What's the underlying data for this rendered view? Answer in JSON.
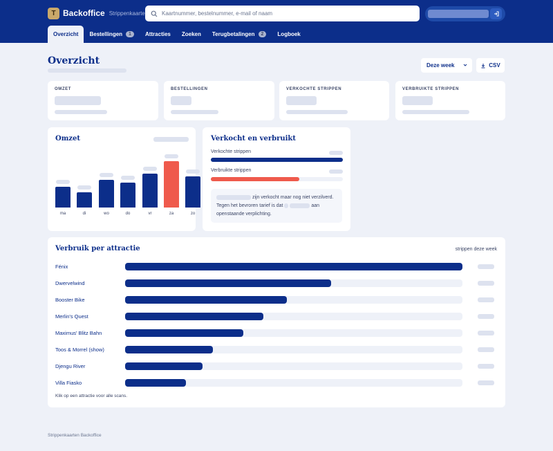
{
  "app": {
    "logo_letter": "T",
    "name": "Backoffice",
    "subtitle": "Strippenkaarten"
  },
  "search": {
    "placeholder": "Kaartnummer, bestelnummer, e-mail of naam"
  },
  "nav": {
    "tabs": [
      {
        "label": "Overzicht",
        "active": true
      },
      {
        "label": "Bestellingen",
        "badge": "1"
      },
      {
        "label": "Attracties"
      },
      {
        "label": "Zoeken"
      },
      {
        "label": "Terugbetalingen",
        "badge": "2"
      },
      {
        "label": "Logboek"
      }
    ]
  },
  "page": {
    "title": "Overzicht"
  },
  "toolbar": {
    "period": "Deze week",
    "csv_label": "CSV"
  },
  "kpis": [
    {
      "label": "OMZET"
    },
    {
      "label": "BESTELLINGEN"
    },
    {
      "label": "VERKOCHTE STRIPPEN"
    },
    {
      "label": "VERBRUIKTE STRIPPEN"
    }
  ],
  "revenue": {
    "title": "Omzet",
    "days": [
      "ma",
      "di",
      "wo",
      "do",
      "vr",
      "za",
      "zo"
    ],
    "relative_values": [
      0.45,
      0.33,
      0.6,
      0.53,
      0.73,
      1.0,
      0.67
    ],
    "highlight_index": 5,
    "colors": {
      "bar": "#0c2e8a",
      "highlight": "#ef5a4c"
    }
  },
  "sold_used": {
    "title": "Verkocht en verbruikt",
    "sold_label": "Verkochte strippen",
    "sold_fraction": 1.0,
    "used_label": "Verbruikte strippen",
    "used_fraction": 0.67,
    "note_part1": "zijn verkocht maar nog niet verzilverd. Tegen het bevroren tarief is dat",
    "note_part2": "aan openstaande verplichting."
  },
  "usage": {
    "title": "Verbruik per attractie",
    "unit_label": "strippen deze week",
    "items": [
      {
        "name": "Fénix",
        "fraction": 1.0
      },
      {
        "name": "Dwervelwind",
        "fraction": 0.61
      },
      {
        "name": "Booster Bike",
        "fraction": 0.48
      },
      {
        "name": "Merlin's Quest",
        "fraction": 0.41
      },
      {
        "name": "Maximus' Blitz Bahn",
        "fraction": 0.35
      },
      {
        "name": "Toos & Morrel (show)",
        "fraction": 0.26
      },
      {
        "name": "Djengu River",
        "fraction": 0.23
      },
      {
        "name": "Villa Fiasko",
        "fraction": 0.18
      }
    ],
    "hint": "Klik op een attractie voor alle scans."
  },
  "footer": {
    "text": "Strippenkaarten Backoffice"
  }
}
